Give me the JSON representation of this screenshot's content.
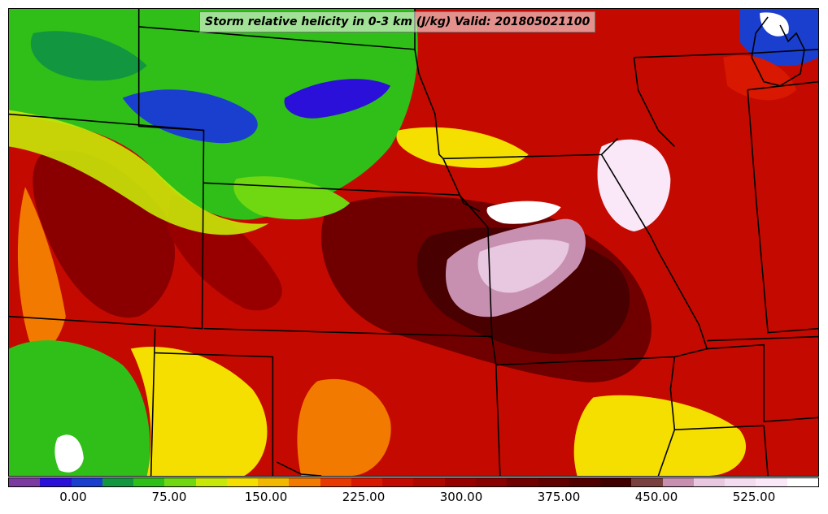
{
  "title": "Storm relative helicity in 0-3 km (J/kg) Valid: 201805021100",
  "colorbar": {
    "colors": [
      "#7a3aa0",
      "#2a10d8",
      "#1a3fcf",
      "#129640",
      "#2fbf18",
      "#70d810",
      "#c8e808",
      "#f5df00",
      "#f2b800",
      "#f27a00",
      "#e83a00",
      "#d81800",
      "#c40a00",
      "#b00600",
      "#980000",
      "#880000",
      "#700000",
      "#600000",
      "#500000",
      "#400000",
      "#7a4040",
      "#c890b0",
      "#e8c8e0",
      "#f4dcf0",
      "#fae8f8",
      "#ffffff"
    ],
    "tick_labels": [
      "0.00",
      "75.00",
      "150.00",
      "225.00",
      "300.00",
      "375.00",
      "450.00",
      "525.00"
    ]
  },
  "map": {
    "background_color": "#c40a00",
    "boundary_color": "#000000"
  }
}
